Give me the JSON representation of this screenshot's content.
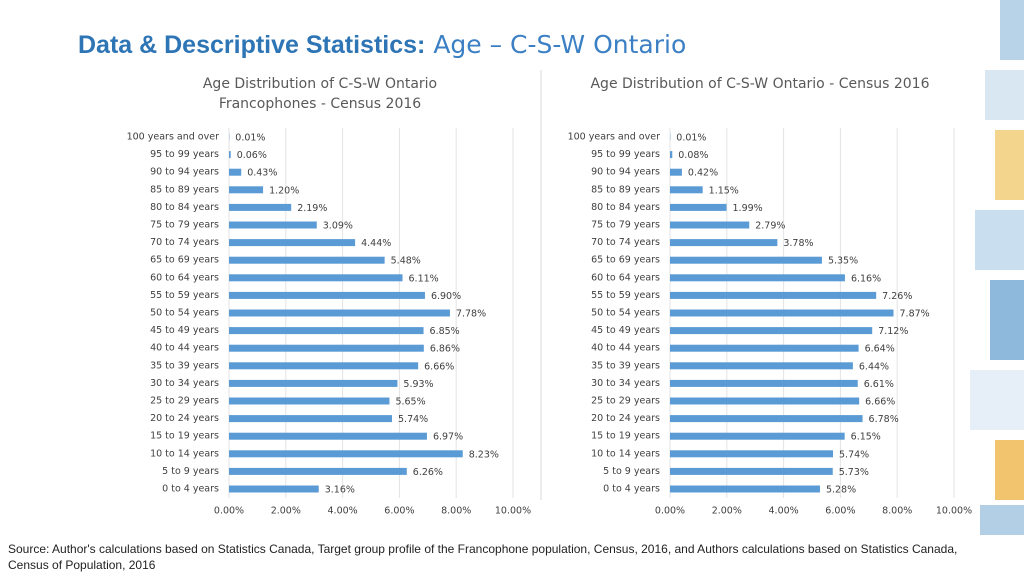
{
  "slide": {
    "title": "Data & Descriptive Statistics:",
    "subtitle": "Age – C-S-W Ontario",
    "source": "Source: Author's calculations based on Statistics Canada, Target group profile of the Francophone population, Census, 2016, and Authors calculations based on Statistics Canada, Census of Population, 2016"
  },
  "chart_data": [
    {
      "type": "bar",
      "orientation": "horizontal",
      "title": "Age Distribution of C-S-W Ontario Francophones - Census 2016",
      "categories": [
        "100 years and over",
        "95 to 99 years",
        "90 to 94 years",
        "85 to 89 years",
        "80 to 84 years",
        "75 to 79 years",
        "70 to 74 years",
        "65 to 69 years",
        "60 to 64 years",
        "55 to 59 years",
        "50 to 54 years",
        "45 to 49 years",
        "40 to 44 years",
        "35 to 39 years",
        "30 to 34 years",
        "25 to 29 years",
        "20 to 24 years",
        "15 to 19 years",
        "10 to 14 years",
        "5 to 9 years",
        "0 to 4 years"
      ],
      "values": [
        0.01,
        0.06,
        0.43,
        1.2,
        2.19,
        3.09,
        4.44,
        5.48,
        6.11,
        6.9,
        7.78,
        6.85,
        6.86,
        6.66,
        5.93,
        5.65,
        5.74,
        6.97,
        8.23,
        6.26,
        3.16
      ],
      "value_labels": [
        "0.01%",
        "0.06%",
        "0.43%",
        "1.20%",
        "2.19%",
        "3.09%",
        "4.44%",
        "5.48%",
        "6.11%",
        "6.90%",
        "7.78%",
        "6.85%",
        "6.86%",
        "6.66%",
        "5.93%",
        "5.65%",
        "5.74%",
        "6.97%",
        "8.23%",
        "6.26%",
        "3.16%"
      ],
      "color": "#5b9bd5",
      "xlim": [
        0,
        10
      ],
      "xticks": [
        {
          "value": 0,
          "label": "0.00%"
        },
        {
          "value": 2,
          "label": "2.00%"
        },
        {
          "value": 4,
          "label": "4.00%"
        },
        {
          "value": 6,
          "label": "6.00%"
        },
        {
          "value": 8,
          "label": "8.00%"
        },
        {
          "value": 10,
          "label": "10.00%"
        }
      ],
      "grid": true
    },
    {
      "type": "bar",
      "orientation": "horizontal",
      "title": "Age Distribution of C-S-W Ontario - Census 2016",
      "categories": [
        "100 years and over",
        "95 to 99 years",
        "90 to 94 years",
        "85 to 89 years",
        "80 to 84 years",
        "75 to 79 years",
        "70 to 74 years",
        "65 to 69 years",
        "60 to 64 years",
        "55 to 59 years",
        "50 to 54 years",
        "45 to 49 years",
        "40 to 44 years",
        "35 to 39 years",
        "30 to 34 years",
        "25 to 29 years",
        "20 to 24 years",
        "15 to 19 years",
        "10 to 14 years",
        "5 to 9 years",
        "0 to 4 years"
      ],
      "values": [
        0.01,
        0.08,
        0.42,
        1.15,
        1.99,
        2.79,
        3.78,
        5.35,
        6.16,
        7.26,
        7.87,
        7.12,
        6.64,
        6.44,
        6.61,
        6.66,
        6.78,
        6.15,
        5.74,
        5.73,
        5.28
      ],
      "value_labels": [
        "0.01%",
        "0.08%",
        "0.42%",
        "1.15%",
        "1.99%",
        "2.79%",
        "3.78%",
        "5.35%",
        "6.16%",
        "7.26%",
        "7.87%",
        "7.12%",
        "6.64%",
        "6.44%",
        "6.61%",
        "6.66%",
        "6.78%",
        "6.15%",
        "5.74%",
        "5.73%",
        "5.28%"
      ],
      "color": "#5b9bd5",
      "xlim": [
        0,
        10
      ],
      "xticks": [
        {
          "value": 0,
          "label": "0.00%"
        },
        {
          "value": 2,
          "label": "2.00%"
        },
        {
          "value": 4,
          "label": "4.00%"
        },
        {
          "value": 6,
          "label": "6.00%"
        },
        {
          "value": 8,
          "label": "8.00%"
        },
        {
          "value": 10,
          "label": "10.00%"
        }
      ],
      "grid": true
    }
  ]
}
